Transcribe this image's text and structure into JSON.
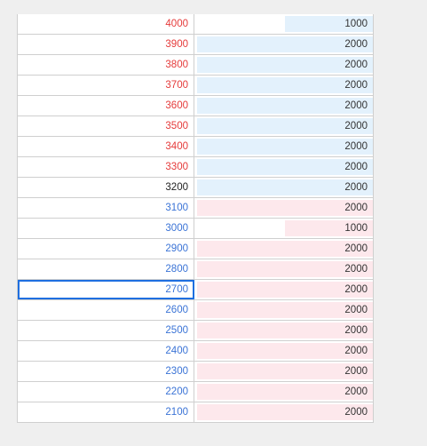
{
  "colors": {
    "ask_price": "#e53a3a",
    "bid_price": "#3a73d6",
    "last_price": "#222222",
    "ask_bar": "#e3f1fc",
    "bid_bar": "#fde8ec"
  },
  "ladder": {
    "max_size": 2000,
    "rows": [
      {
        "price": "4000",
        "size": "1000",
        "side": "ask"
      },
      {
        "price": "3900",
        "size": "2000",
        "side": "ask"
      },
      {
        "price": "3800",
        "size": "2000",
        "side": "ask"
      },
      {
        "price": "3700",
        "size": "2000",
        "side": "ask"
      },
      {
        "price": "3600",
        "size": "2000",
        "side": "ask"
      },
      {
        "price": "3500",
        "size": "2000",
        "side": "ask"
      },
      {
        "price": "3400",
        "size": "2000",
        "side": "ask"
      },
      {
        "price": "3300",
        "size": "2000",
        "side": "ask"
      },
      {
        "price": "3200",
        "size": "2000",
        "side": "last"
      },
      {
        "price": "3100",
        "size": "2000",
        "side": "bid"
      },
      {
        "price": "3000",
        "size": "1000",
        "side": "bid"
      },
      {
        "price": "2900",
        "size": "2000",
        "side": "bid"
      },
      {
        "price": "2800",
        "size": "2000",
        "side": "bid"
      },
      {
        "price": "2700",
        "size": "2000",
        "side": "bid",
        "selected": true
      },
      {
        "price": "2600",
        "size": "2000",
        "side": "bid"
      },
      {
        "price": "2500",
        "size": "2000",
        "side": "bid"
      },
      {
        "price": "2400",
        "size": "2000",
        "side": "bid"
      },
      {
        "price": "2300",
        "size": "2000",
        "side": "bid"
      },
      {
        "price": "2200",
        "size": "2000",
        "side": "bid"
      },
      {
        "price": "2100",
        "size": "2000",
        "side": "bid"
      }
    ]
  }
}
